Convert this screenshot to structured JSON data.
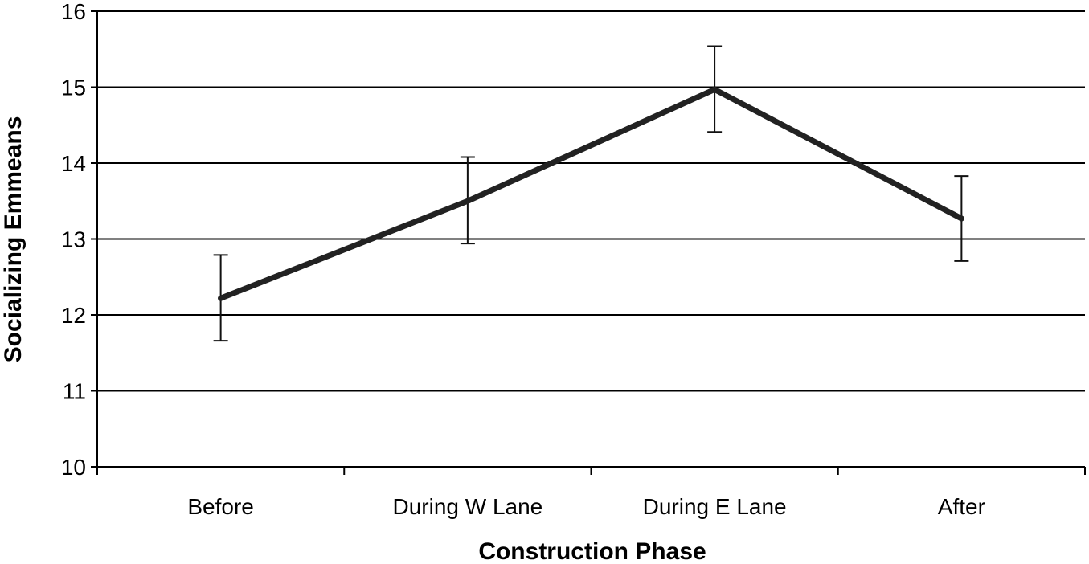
{
  "chart_data": {
    "type": "line",
    "title": "",
    "xlabel": "Construction Phase",
    "ylabel": "Socializing Emmeans",
    "categories": [
      "Before",
      "During W Lane",
      "During E Lane",
      "After"
    ],
    "values": [
      12.22,
      13.5,
      14.97,
      13.27
    ],
    "error_low": [
      11.66,
      12.94,
      14.41,
      12.71
    ],
    "error_high": [
      12.79,
      14.08,
      15.54,
      13.83
    ],
    "ylim": [
      10,
      16
    ],
    "yticks": [
      10,
      11,
      12,
      13,
      14,
      15,
      16
    ],
    "grid": true,
    "legend": "none"
  }
}
